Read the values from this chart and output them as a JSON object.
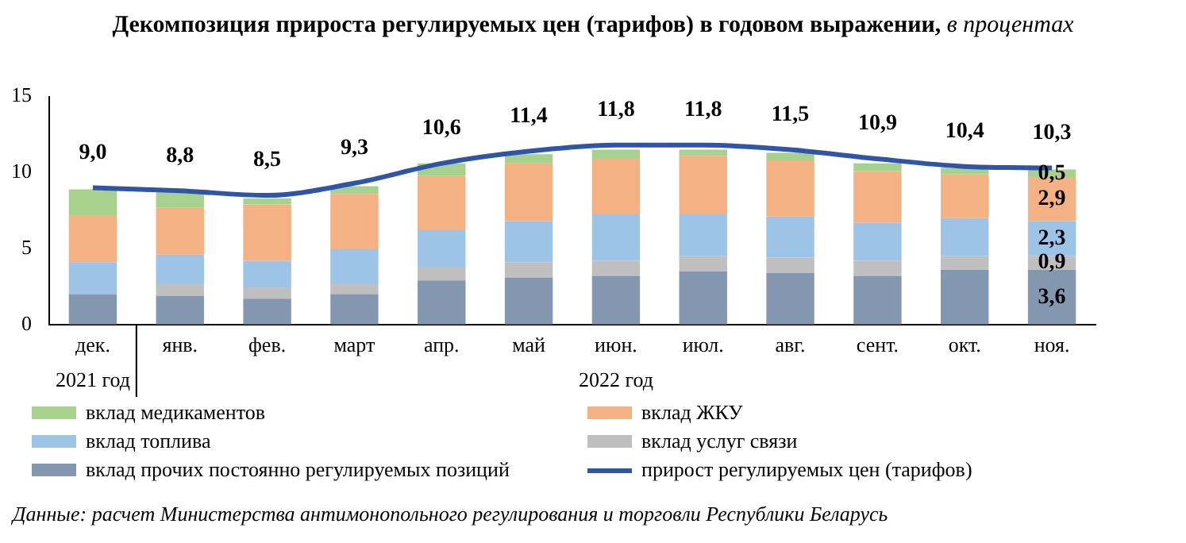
{
  "chart_data": {
    "type": "bar",
    "title": "Декомпозиция прироста регулируемых цен (тарифов) в годовом выражении,",
    "subtitle": "в процентах",
    "categories": [
      "дек.",
      "янв.",
      "фев.",
      "март",
      "апр.",
      "май",
      "июн.",
      "июл.",
      "авг.",
      "сент.",
      "окт.",
      "ноя."
    ],
    "stacked": true,
    "ylim": [
      0,
      15
    ],
    "yticks": [
      0,
      5,
      10,
      15
    ],
    "grid": false,
    "legend": "bottom",
    "marker": "none",
    "series": [
      {
        "name": "вклад прочих постоянно регулируемых позиций",
        "color": "#8497b0",
        "values": [
          2.0,
          1.9,
          1.7,
          2.0,
          2.9,
          3.1,
          3.2,
          3.5,
          3.4,
          3.2,
          3.6,
          3.6
        ],
        "value_labels": [
          null,
          null,
          null,
          null,
          null,
          null,
          null,
          null,
          null,
          null,
          null,
          "3,6"
        ]
      },
      {
        "name": "вклад услуг связи",
        "color": "#bfbfbf",
        "values": [
          null,
          0.8,
          0.8,
          0.7,
          0.9,
          1.0,
          1.0,
          1.0,
          1.0,
          1.0,
          0.9,
          0.9
        ],
        "value_labels": [
          null,
          null,
          null,
          null,
          null,
          null,
          null,
          null,
          null,
          null,
          null,
          "0,9"
        ]
      },
      {
        "name": "вклад топлива",
        "color": "#9dc3e6",
        "values": [
          2.1,
          1.9,
          1.7,
          2.3,
          2.4,
          2.7,
          3.1,
          2.8,
          2.7,
          2.5,
          2.5,
          2.3
        ],
        "value_labels": [
          null,
          null,
          null,
          null,
          null,
          null,
          null,
          null,
          null,
          null,
          null,
          "2,3"
        ]
      },
      {
        "name": "вклад ЖКУ",
        "color": "#f4b183",
        "values": [
          3.1,
          3.1,
          3.7,
          3.6,
          3.6,
          3.8,
          3.6,
          3.8,
          3.7,
          3.4,
          2.9,
          2.9
        ],
        "value_labels": [
          null,
          null,
          null,
          null,
          null,
          null,
          null,
          null,
          null,
          null,
          null,
          "2,9"
        ]
      },
      {
        "name": "вклад медикаментов",
        "color": "#a9d18e",
        "values": [
          1.7,
          1.0,
          0.4,
          0.5,
          0.8,
          0.6,
          0.6,
          0.4,
          0.5,
          0.5,
          0.4,
          0.5
        ],
        "value_labels": [
          null,
          null,
          null,
          null,
          null,
          null,
          null,
          null,
          null,
          null,
          null,
          "0,5"
        ]
      },
      {
        "name": "прирост регулируемых цен (тарифов)",
        "type": "line",
        "color": "#2f55a4",
        "values": [
          9.0,
          8.8,
          8.5,
          9.3,
          10.6,
          11.4,
          11.8,
          11.8,
          11.5,
          10.9,
          10.4,
          10.3
        ],
        "value_labels": [
          "9,0",
          "8,8",
          "8,5",
          "9,3",
          "10,6",
          "11,4",
          "11,8",
          "11,8",
          "11,5",
          "10,9",
          "10,4",
          "10,3"
        ]
      }
    ],
    "annotations": [
      "2021 год",
      "2022 год",
      "Данные: расчет Министерства антимонопольного регулирования и торговли Республики Беларусь"
    ]
  }
}
